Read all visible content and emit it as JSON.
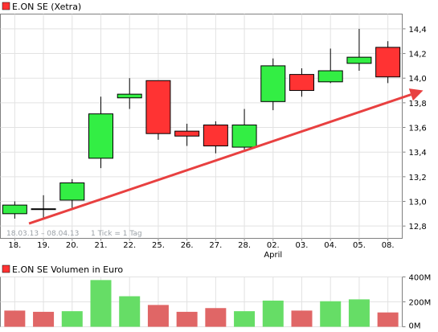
{
  "chart_data": [
    {
      "type": "candlestick",
      "title": "E.ON SE (Xetra)",
      "legend_color": "#ff3333",
      "date_range": "18.03.13 – 08.04.13",
      "tick_note": "1 Tick = 1 Tag",
      "categories": [
        "18.",
        "19.",
        "20.",
        "21.",
        "22.",
        "25.",
        "26.",
        "27.",
        "28.",
        "02.",
        "03.",
        "04.",
        "05.",
        "08."
      ],
      "month_label": {
        "at": "02.",
        "text": "April"
      },
      "y_ticks": [
        "12,8",
        "13,0",
        "13,2",
        "13,4",
        "13,6",
        "13,8",
        "14,0",
        "14,2",
        "14,4"
      ],
      "ylim": [
        12.7,
        14.52
      ],
      "candles": [
        {
          "open": 12.9,
          "close": 12.97,
          "high": 13.0,
          "low": 12.86
        },
        {
          "open": 12.94,
          "close": 12.94,
          "high": 13.05,
          "low": 12.86
        },
        {
          "open": 13.01,
          "close": 13.15,
          "high": 13.18,
          "low": 12.93
        },
        {
          "open": 13.35,
          "close": 13.71,
          "high": 13.85,
          "low": 13.27
        },
        {
          "open": 13.84,
          "close": 13.87,
          "high": 14.0,
          "low": 13.75
        },
        {
          "open": 13.98,
          "close": 13.55,
          "high": 13.98,
          "low": 13.5
        },
        {
          "open": 13.57,
          "close": 13.53,
          "high": 13.63,
          "low": 13.45
        },
        {
          "open": 13.62,
          "close": 13.45,
          "high": 13.65,
          "low": 13.39
        },
        {
          "open": 13.44,
          "close": 13.62,
          "high": 13.75,
          "low": 13.42
        },
        {
          "open": 13.81,
          "close": 14.1,
          "high": 14.16,
          "low": 13.74
        },
        {
          "open": 14.03,
          "close": 13.9,
          "high": 14.08,
          "low": 13.85
        },
        {
          "open": 13.97,
          "close": 14.06,
          "high": 14.24,
          "low": 13.96
        },
        {
          "open": 14.12,
          "close": 14.17,
          "high": 14.4,
          "low": 14.06
        },
        {
          "open": 14.25,
          "close": 14.01,
          "high": 14.3,
          "low": 13.96
        }
      ],
      "trendline": {
        "start": [
          "19.",
          12.82
        ],
        "end": [
          "08.",
          13.9
        ],
        "color": "#e84040"
      },
      "up_color": "#33ee44",
      "down_color": "#ff3333",
      "grid": true
    },
    {
      "type": "bar",
      "title": "E.ON SE Volumen in Euro",
      "legend_color": "#ff3333",
      "categories": [
        "18.",
        "19.",
        "20.",
        "21.",
        "22.",
        "25.",
        "26.",
        "27.",
        "28.",
        "02.",
        "03.",
        "04.",
        "05.",
        "08."
      ],
      "values": [
        130,
        120,
        125,
        375,
        245,
        175,
        120,
        150,
        125,
        210,
        130,
        205,
        220,
        115
      ],
      "value_unit": "M",
      "colors": [
        "#e06666",
        "#e06666",
        "#66dd66",
        "#66dd66",
        "#66dd66",
        "#e06666",
        "#e06666",
        "#e06666",
        "#66dd66",
        "#66dd66",
        "#e06666",
        "#66dd66",
        "#66dd66",
        "#e06666"
      ],
      "y_ticks": [
        "0M",
        "200M",
        "400M"
      ],
      "ylim": [
        0,
        400
      ],
      "grid": true
    }
  ]
}
